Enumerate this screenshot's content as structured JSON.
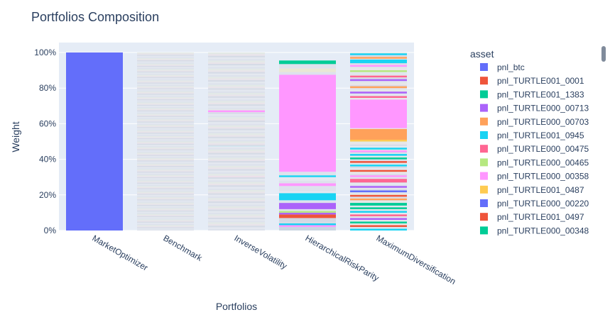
{
  "chart_data": {
    "type": "bar",
    "stacked": true,
    "title": "Portfolios Composition",
    "xlabel": "Portfolios",
    "ylabel": "Weight",
    "ylim": [
      0,
      1
    ],
    "y_ticks": [
      "0%",
      "20%",
      "40%",
      "60%",
      "80%",
      "100%"
    ],
    "y_tick_values": [
      0,
      0.2,
      0.4,
      0.6,
      0.8,
      1.0
    ],
    "grid": true,
    "legend_position": "right",
    "legend_title": "asset",
    "categories": [
      "MarketOptimizer",
      "Benchmark",
      "InverseVolatility",
      "HierarchicalRiskParity",
      "MaximumDiversification"
    ],
    "palette": [
      "#636efa",
      "#EF553B",
      "#00cc96",
      "#ab63fa",
      "#FFA15A",
      "#19d3f3",
      "#FF6692",
      "#B6E880",
      "#FF97FF",
      "#FECB52"
    ],
    "series": [
      {
        "name": "pnl_btc",
        "color": "#636efa"
      },
      {
        "name": "pnl_TURTLE001_0001",
        "color": "#EF553B"
      },
      {
        "name": "pnl_TURTLE001_1383",
        "color": "#00cc96"
      },
      {
        "name": "pnl_TURTLE000_00713",
        "color": "#ab63fa"
      },
      {
        "name": "pnl_TURTLE000_00703",
        "color": "#FFA15A"
      },
      {
        "name": "pnl_TURTLE001_0945",
        "color": "#19d3f3"
      },
      {
        "name": "pnl_TURTLE000_00475",
        "color": "#FF6692"
      },
      {
        "name": "pnl_TURTLE000_00465",
        "color": "#B6E880"
      },
      {
        "name": "pnl_TURTLE000_00358",
        "color": "#FF97FF"
      },
      {
        "name": "pnl_TURTLE001_0487",
        "color": "#FECB52"
      },
      {
        "name": "pnl_TURTLE000_00220",
        "color": "#636efa"
      },
      {
        "name": "pnl_TURTLE001_0497",
        "color": "#EF553B"
      },
      {
        "name": "pnl_TURTLE000_00348",
        "color": "#00cc96"
      }
    ],
    "stacks": [
      {
        "category": "MarketOptimizer",
        "segments": [
          {
            "value": 1.0,
            "color": "#636efa"
          }
        ]
      },
      {
        "category": "Benchmark",
        "uniform": {
          "count": 160,
          "colors": [
            "#dde2ec",
            "#e4e8f0",
            "#d6dbe6",
            "#e9e4ea",
            "#e3e9e6"
          ]
        }
      },
      {
        "category": "InverseVolatility",
        "uniform": {
          "count": 110,
          "colors": [
            "#dde2ec",
            "#e4e8f0",
            "#d6dbe6",
            "#e9e4ea",
            "#e3e9e6"
          ]
        },
        "segments": [
          {
            "from": 0.665,
            "to": 0.675,
            "color": "#FF97FF"
          },
          {
            "from": 0.47,
            "to": 0.475,
            "color": "#d3e8f0"
          },
          {
            "from": 0.3,
            "to": 0.304,
            "color": "#f0dcea"
          }
        ]
      },
      {
        "category": "HierarchicalRiskParity",
        "segments": [
          {
            "from": 0.0,
            "to": 0.02,
            "color": "#c9d6e2"
          },
          {
            "from": 0.02,
            "to": 0.03,
            "color": "#FF97FF"
          },
          {
            "from": 0.03,
            "to": 0.04,
            "color": "#19d3f3"
          },
          {
            "from": 0.04,
            "to": 0.05,
            "color": "#d5dbe6"
          },
          {
            "from": 0.05,
            "to": 0.07,
            "color": "#d3d9e4"
          },
          {
            "from": 0.07,
            "to": 0.09,
            "color": "#EF553B"
          },
          {
            "from": 0.09,
            "to": 0.1,
            "color": "#ab63fa"
          },
          {
            "from": 0.1,
            "to": 0.11,
            "color": "#B6E880"
          },
          {
            "from": 0.11,
            "to": 0.12,
            "color": "#dde2ec"
          },
          {
            "from": 0.12,
            "to": 0.155,
            "color": "#ab63fa"
          },
          {
            "from": 0.155,
            "to": 0.17,
            "color": "#dde2ec"
          },
          {
            "from": 0.17,
            "to": 0.21,
            "color": "#19d3f3"
          },
          {
            "from": 0.21,
            "to": 0.22,
            "color": "#e4e8f0"
          },
          {
            "from": 0.22,
            "to": 0.25,
            "color": "#dde2ec"
          },
          {
            "from": 0.25,
            "to": 0.265,
            "color": "#FF97FF"
          },
          {
            "from": 0.265,
            "to": 0.28,
            "color": "#dde2ec"
          },
          {
            "from": 0.28,
            "to": 0.3,
            "color": "#e4e8f0"
          },
          {
            "from": 0.3,
            "to": 0.31,
            "color": "#19d3f3"
          },
          {
            "from": 0.31,
            "to": 0.33,
            "color": "#dde2ec"
          },
          {
            "from": 0.33,
            "to": 0.875,
            "color": "#FF97FF"
          },
          {
            "from": 0.875,
            "to": 0.89,
            "color": "#dde2ec"
          },
          {
            "from": 0.89,
            "to": 0.91,
            "color": "#e9e8d4"
          },
          {
            "from": 0.91,
            "to": 0.935,
            "color": "#dde2ec"
          },
          {
            "from": 0.935,
            "to": 0.955,
            "color": "#00cc96"
          }
        ]
      },
      {
        "category": "MaximumDiversification",
        "uniform": {
          "count": 120,
          "colors": [
            "#dde2ec",
            "#e4e8f0",
            "#d6dbe6",
            "#e9e4ea",
            "#e3e9e6"
          ]
        },
        "segments": [
          {
            "from": 0.0,
            "to": 0.01,
            "color": "#19d3f3"
          },
          {
            "from": 0.02,
            "to": 0.03,
            "color": "#EF553B"
          },
          {
            "from": 0.04,
            "to": 0.05,
            "color": "#00cc96"
          },
          {
            "from": 0.06,
            "to": 0.07,
            "color": "#ab63fa"
          },
          {
            "from": 0.08,
            "to": 0.09,
            "color": "#FF6692"
          },
          {
            "from": 0.1,
            "to": 0.11,
            "color": "#19d3f3"
          },
          {
            "from": 0.12,
            "to": 0.13,
            "color": "#00cc96"
          },
          {
            "from": 0.14,
            "to": 0.155,
            "color": "#00cc96"
          },
          {
            "from": 0.17,
            "to": 0.18,
            "color": "#FFA15A"
          },
          {
            "from": 0.19,
            "to": 0.2,
            "color": "#EF553B"
          },
          {
            "from": 0.215,
            "to": 0.225,
            "color": "#636efa"
          },
          {
            "from": 0.24,
            "to": 0.25,
            "color": "#ab63fa"
          },
          {
            "from": 0.27,
            "to": 0.29,
            "color": "#FF6692"
          },
          {
            "from": 0.3,
            "to": 0.31,
            "color": "#FF97FF"
          },
          {
            "from": 0.33,
            "to": 0.34,
            "color": "#EF553B"
          },
          {
            "from": 0.36,
            "to": 0.37,
            "color": "#19d3f3"
          },
          {
            "from": 0.38,
            "to": 0.39,
            "color": "#EF553B"
          },
          {
            "from": 0.4,
            "to": 0.41,
            "color": "#00cc96"
          },
          {
            "from": 0.42,
            "to": 0.43,
            "color": "#19d3f3"
          },
          {
            "from": 0.44,
            "to": 0.45,
            "color": "#FF97FF"
          },
          {
            "from": 0.455,
            "to": 0.465,
            "color": "#19d3f3"
          },
          {
            "from": 0.5,
            "to": 0.51,
            "color": "#FECB52"
          },
          {
            "from": 0.51,
            "to": 0.57,
            "color": "#FFA15A"
          },
          {
            "from": 0.575,
            "to": 0.735,
            "color": "#FF97FF"
          },
          {
            "from": 0.745,
            "to": 0.755,
            "color": "#FF6692"
          },
          {
            "from": 0.77,
            "to": 0.78,
            "color": "#ab63fa"
          },
          {
            "from": 0.8,
            "to": 0.81,
            "color": "#FFA15A"
          },
          {
            "from": 0.84,
            "to": 0.85,
            "color": "#ab63fa"
          },
          {
            "from": 0.86,
            "to": 0.87,
            "color": "#FF6692"
          },
          {
            "from": 0.89,
            "to": 0.9,
            "color": "#B6E880"
          },
          {
            "from": 0.92,
            "to": 0.93,
            "color": "#FF97FF"
          },
          {
            "from": 0.94,
            "to": 0.96,
            "color": "#19d3f3"
          },
          {
            "from": 0.965,
            "to": 0.975,
            "color": "#FFA15A"
          },
          {
            "from": 0.985,
            "to": 0.995,
            "color": "#19d3f3"
          }
        ]
      }
    ]
  }
}
